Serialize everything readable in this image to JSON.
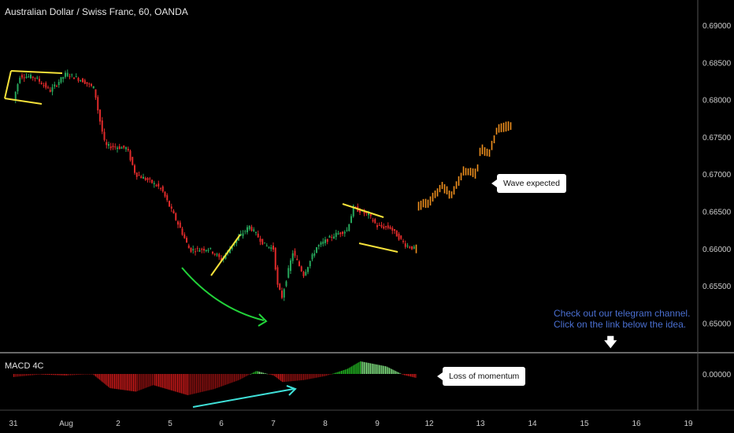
{
  "title": "Australian Dollar / Swiss Franc, 60, OANDA",
  "indicator_label": "MACD 4C",
  "note": {
    "line1": "Check out our telegram channel.",
    "line2": "Click on the link below the idea."
  },
  "annotations": {
    "wave": "Wave expected",
    "momentum": "Loss of momentum"
  },
  "colors": {
    "background": "#000000",
    "up_candle": "#26a65b",
    "down_candle": "#e02a2a",
    "projection": "#f0901e",
    "pattern_lines": "#f5e13a",
    "curve_arrow": "#22d33a",
    "macd_arrow": "#3fe0d8",
    "hist_neg": "#c41818",
    "hist_pos": "#22b522",
    "axis_text": "#cccccc",
    "separator": "#d0d0d0"
  },
  "chart_data": [
    {
      "type": "candlestick",
      "title": "Australian Dollar / Swiss Franc, 60, OANDA",
      "y_ticks": [
        "0.69000",
        "0.68500",
        "0.68000",
        "0.67500",
        "0.67000",
        "0.66500",
        "0.66000",
        "0.65500",
        "0.65000"
      ],
      "x_ticks": [
        "31",
        "Aug",
        "2",
        "5",
        "6",
        "7",
        "8",
        "9",
        "12",
        "13",
        "14",
        "15",
        "16",
        "19"
      ],
      "ylim": [
        0.6465,
        0.6923
      ],
      "price_path": [
        {
          "x": "Jul 31 00:00",
          "y": 0.68
        },
        {
          "x": "Jul 31 03:00",
          "y": 0.6832
        },
        {
          "x": "Jul 31 10:00",
          "y": 0.683
        },
        {
          "x": "Jul 31 17:00",
          "y": 0.6812
        },
        {
          "x": "Aug 1 00:00",
          "y": 0.6835
        },
        {
          "x": "Aug 1 08:00",
          "y": 0.6825
        },
        {
          "x": "Aug 1 13:00",
          "y": 0.6815
        },
        {
          "x": "Aug 1 15:00",
          "y": 0.678
        },
        {
          "x": "Aug 1 18:00",
          "y": 0.6738
        },
        {
          "x": "Aug 2 04:00",
          "y": 0.6735
        },
        {
          "x": "Aug 2 08:00",
          "y": 0.67
        },
        {
          "x": "Aug 2 15:00",
          "y": 0.669
        },
        {
          "x": "Aug 2 20:00",
          "y": 0.668
        },
        {
          "x": "Aug 5 00:00",
          "y": 0.6655
        },
        {
          "x": "Aug 5 05:00",
          "y": 0.6625
        },
        {
          "x": "Aug 5 09:00",
          "y": 0.6598
        },
        {
          "x": "Aug 5 18:00",
          "y": 0.66
        },
        {
          "x": "Aug 6 00:00",
          "y": 0.6585
        },
        {
          "x": "Aug 6 08:00",
          "y": 0.6615
        },
        {
          "x": "Aug 6 13:00",
          "y": 0.663
        },
        {
          "x": "Aug 6 20:00",
          "y": 0.6605
        },
        {
          "x": "Aug 7 00:00",
          "y": 0.66
        },
        {
          "x": "Aug 7 02:00",
          "y": 0.655
        },
        {
          "x": "Aug 7 04:00",
          "y": 0.6535
        },
        {
          "x": "Aug 7 09:00",
          "y": 0.6595
        },
        {
          "x": "Aug 7 14:00",
          "y": 0.6565
        },
        {
          "x": "Aug 7 20:00",
          "y": 0.6602
        },
        {
          "x": "Aug 8 04:00",
          "y": 0.6618
        },
        {
          "x": "Aug 8 10:00",
          "y": 0.6625
        },
        {
          "x": "Aug 8 13:00",
          "y": 0.6655
        },
        {
          "x": "Aug 8 20:00",
          "y": 0.6645
        },
        {
          "x": "Aug 9 00:00",
          "y": 0.663
        },
        {
          "x": "Aug 9 06:00",
          "y": 0.6628
        },
        {
          "x": "Aug 9 13:00",
          "y": 0.6605
        },
        {
          "x": "Aug 9 17:00",
          "y": 0.66
        }
      ],
      "projection_path": [
        {
          "x": "Aug 9 18:00",
          "y": 0.66
        },
        {
          "x": "Aug 9 19:00",
          "y": 0.6658
        },
        {
          "x": "Aug 12 00:00",
          "y": 0.6662
        },
        {
          "x": "Aug 12 06:00",
          "y": 0.6685
        },
        {
          "x": "Aug 12 10:00",
          "y": 0.667
        },
        {
          "x": "Aug 12 16:00",
          "y": 0.6705
        },
        {
          "x": "Aug 12 22:00",
          "y": 0.67
        },
        {
          "x": "Aug 13 00:00",
          "y": 0.6735
        },
        {
          "x": "Aug 13 04:00",
          "y": 0.6727
        },
        {
          "x": "Aug 13 08:00",
          "y": 0.6762
        },
        {
          "x": "Aug 13 14:00",
          "y": 0.6765
        }
      ],
      "annotations": [
        "Wave expected"
      ]
    },
    {
      "type": "histogram",
      "title": "MACD 4C",
      "y_ticks": [
        "0.00000"
      ],
      "histogram_path": [
        {
          "x": "Jul 31 00:00",
          "y": -0.0006
        },
        {
          "x": "Jul 31 12:00",
          "y": -0.0001
        },
        {
          "x": "Aug 1 00:00",
          "y": -0.0003
        },
        {
          "x": "Aug 1 12:00",
          "y": 0.0
        },
        {
          "x": "Aug 1 20:00",
          "y": -0.0028
        },
        {
          "x": "Aug 2 08:00",
          "y": -0.0035
        },
        {
          "x": "Aug 2 16:00",
          "y": -0.0022
        },
        {
          "x": "Aug 5 00:00",
          "y": -0.0032
        },
        {
          "x": "Aug 5 08:00",
          "y": -0.0042
        },
        {
          "x": "Aug 5 20:00",
          "y": -0.003
        },
        {
          "x": "Aug 6 08:00",
          "y": -0.0012
        },
        {
          "x": "Aug 6 16:00",
          "y": 0.0006
        },
        {
          "x": "Aug 7 00:00",
          "y": -0.0003
        },
        {
          "x": "Aug 7 04:00",
          "y": -0.0016
        },
        {
          "x": "Aug 7 14:00",
          "y": -0.0012
        },
        {
          "x": "Aug 8 00:00",
          "y": -0.0004
        },
        {
          "x": "Aug 8 10:00",
          "y": 0.001
        },
        {
          "x": "Aug 8 16:00",
          "y": 0.0025
        },
        {
          "x": "Aug 9 04:00",
          "y": 0.0015
        },
        {
          "x": "Aug 9 12:00",
          "y": -0.0002
        },
        {
          "x": "Aug 9 18:00",
          "y": -0.0008
        }
      ],
      "annotations": [
        "Loss of momentum"
      ]
    }
  ]
}
